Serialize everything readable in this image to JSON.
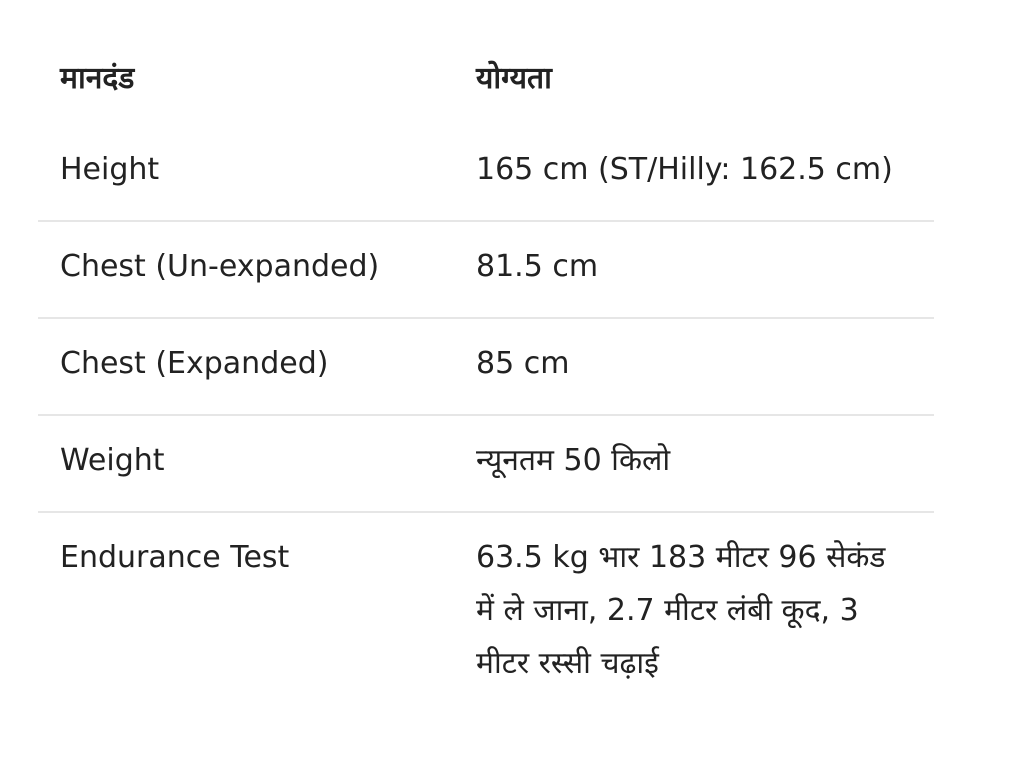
{
  "table": {
    "headers": [
      "मानदंड",
      "योग्यता"
    ],
    "rows": [
      {
        "criterion": "Height",
        "eligibility": "165 cm (ST/Hilly: 162.5 cm)"
      },
      {
        "criterion": "Chest (Un-expanded)",
        "eligibility": "81.5 cm"
      },
      {
        "criterion": "Chest (Expanded)",
        "eligibility": "85 cm"
      },
      {
        "criterion": "Weight",
        "eligibility": "न्यूनतम 50 किलो"
      },
      {
        "criterion": "Endurance Test",
        "eligibility": "63.5 kg भार 183 मीटर 96 सेकंड में ले जाना, 2.7 मीटर लंबी कूद, 3 मीटर रस्सी चढ़ाई"
      }
    ]
  }
}
